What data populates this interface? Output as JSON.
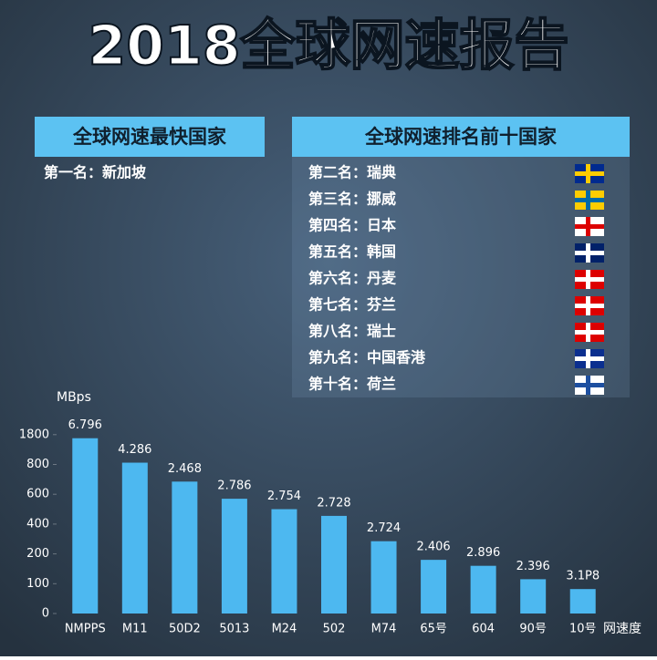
{
  "title": "2018全球网速报告",
  "fastest": {
    "heading": "全球网速最快国家",
    "entry": "第一名：新加坡"
  },
  "top_ten": {
    "heading": "全球网速排名前十国家",
    "rows": [
      "第二名：瑞典",
      "第三名：挪威",
      "第四名：日本",
      "第五名：韩国",
      "第六名：丹麦",
      "第七名：芬兰",
      "第八名：瑞士",
      "第九名：中国香港",
      "第十名：荷兰"
    ]
  },
  "chart_data": {
    "type": "bar",
    "y_label": "MBps",
    "x_label": "网速度",
    "categories": [
      "NMPPS",
      "M11",
      "50D2",
      "5013",
      "M24",
      "502",
      "M74",
      "65号",
      "604",
      "90号",
      "10号"
    ],
    "values": [
      1680,
      860,
      685,
      570,
      500,
      455,
      285,
      180,
      160,
      115,
      82
    ],
    "bar_texts": [
      "6.796",
      "4.286",
      "2.468",
      "2.786",
      "2.754",
      "2.728",
      "2.724",
      "2.406",
      "2.896",
      "2.396",
      "3.1P8"
    ],
    "color": "#4db8f0",
    "ylim": [
      0,
      1800
    ],
    "yticks": [
      0,
      100,
      200,
      400,
      600,
      800,
      1800
    ]
  }
}
